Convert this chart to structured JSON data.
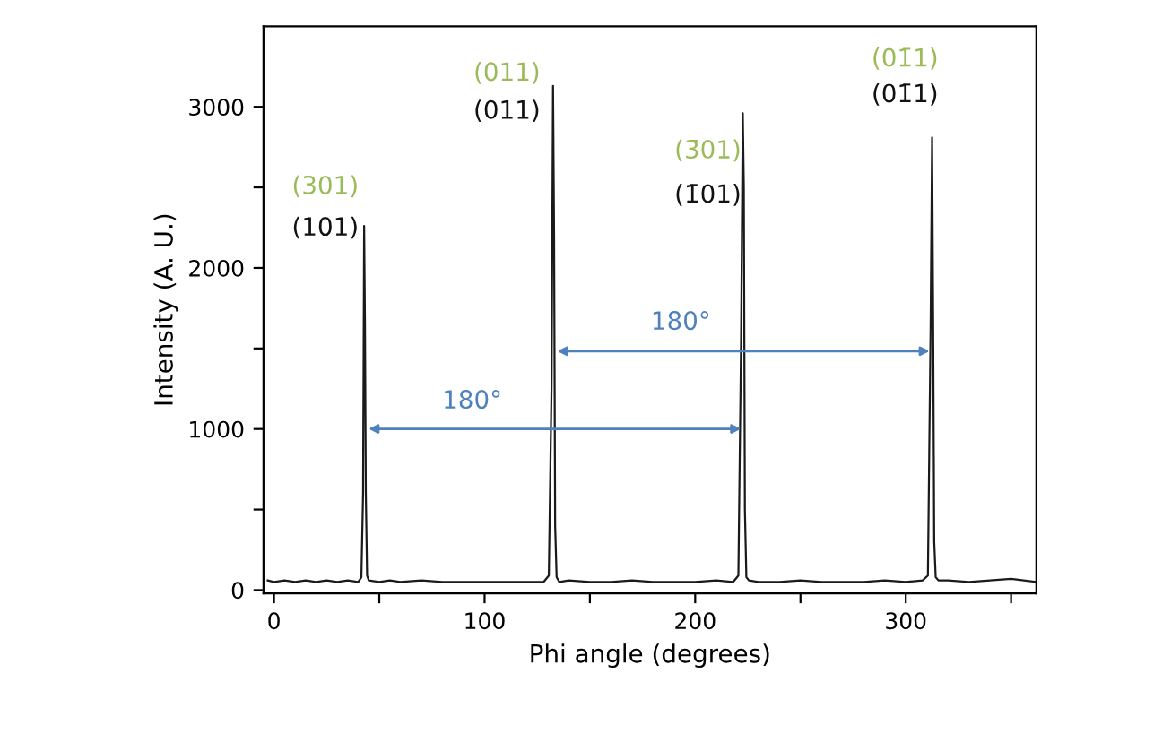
{
  "chart_data": {
    "type": "line",
    "xlabel": "Phi angle (degrees)",
    "ylabel": "Intensity (A. U.)",
    "xlim": [
      -5,
      362
    ],
    "ylim": [
      -20,
      3500
    ],
    "xticks": [
      0,
      {
        "value": 50,
        "label": null
      },
      100,
      {
        "value": 150,
        "label": null
      },
      200,
      {
        "value": 250,
        "label": null
      },
      300,
      {
        "value": 350,
        "label": null
      }
    ],
    "yticks": [
      0,
      {
        "value": 500,
        "label": null
      },
      1000,
      {
        "value": 1500,
        "label": null
      },
      2000,
      {
        "value": 2500,
        "label": null
      },
      3000
    ],
    "grid": false,
    "legend": false,
    "marker": "none",
    "line_style": "solid",
    "series": [
      {
        "color": "#1a1a1a",
        "x": [
          -3,
          0,
          5,
          10,
          15,
          20,
          25,
          30,
          35,
          40,
          41.5,
          42.3,
          42.8,
          43.2,
          43.6,
          44.2,
          45,
          50,
          55,
          60,
          70,
          80,
          90,
          100,
          110,
          120,
          128,
          130.5,
          131.8,
          132.5,
          133,
          133.5,
          134.2,
          135.5,
          140,
          150,
          160,
          170,
          180,
          190,
          200,
          210,
          218,
          220.5,
          221.8,
          222.6,
          223.1,
          223.6,
          224.3,
          225.5,
          230,
          240,
          250,
          260,
          270,
          280,
          290,
          300,
          308,
          310.5,
          311.8,
          312.5,
          313,
          313.5,
          314.2,
          315.5,
          320,
          330,
          340,
          350,
          362
        ],
        "values": [
          60,
          50,
          60,
          50,
          60,
          50,
          60,
          50,
          60,
          50,
          80,
          600,
          2260,
          1650,
          600,
          90,
          60,
          50,
          60,
          50,
          60,
          50,
          50,
          50,
          50,
          50,
          50,
          90,
          1270,
          3130,
          2220,
          400,
          80,
          50,
          60,
          50,
          50,
          60,
          50,
          50,
          50,
          60,
          50,
          90,
          1550,
          2960,
          2500,
          500,
          80,
          60,
          50,
          50,
          60,
          50,
          50,
          50,
          60,
          50,
          60,
          90,
          1650,
          2810,
          1650,
          300,
          80,
          60,
          60,
          50,
          60,
          70,
          50
        ]
      }
    ],
    "annotations": [
      "(301)",
      "(101)",
      "(011)",
      "(011)",
      "(3̄01)",
      "(1̄01)",
      "(01̄1)",
      "(01̄1)",
      "180°",
      "180°"
    ]
  }
}
